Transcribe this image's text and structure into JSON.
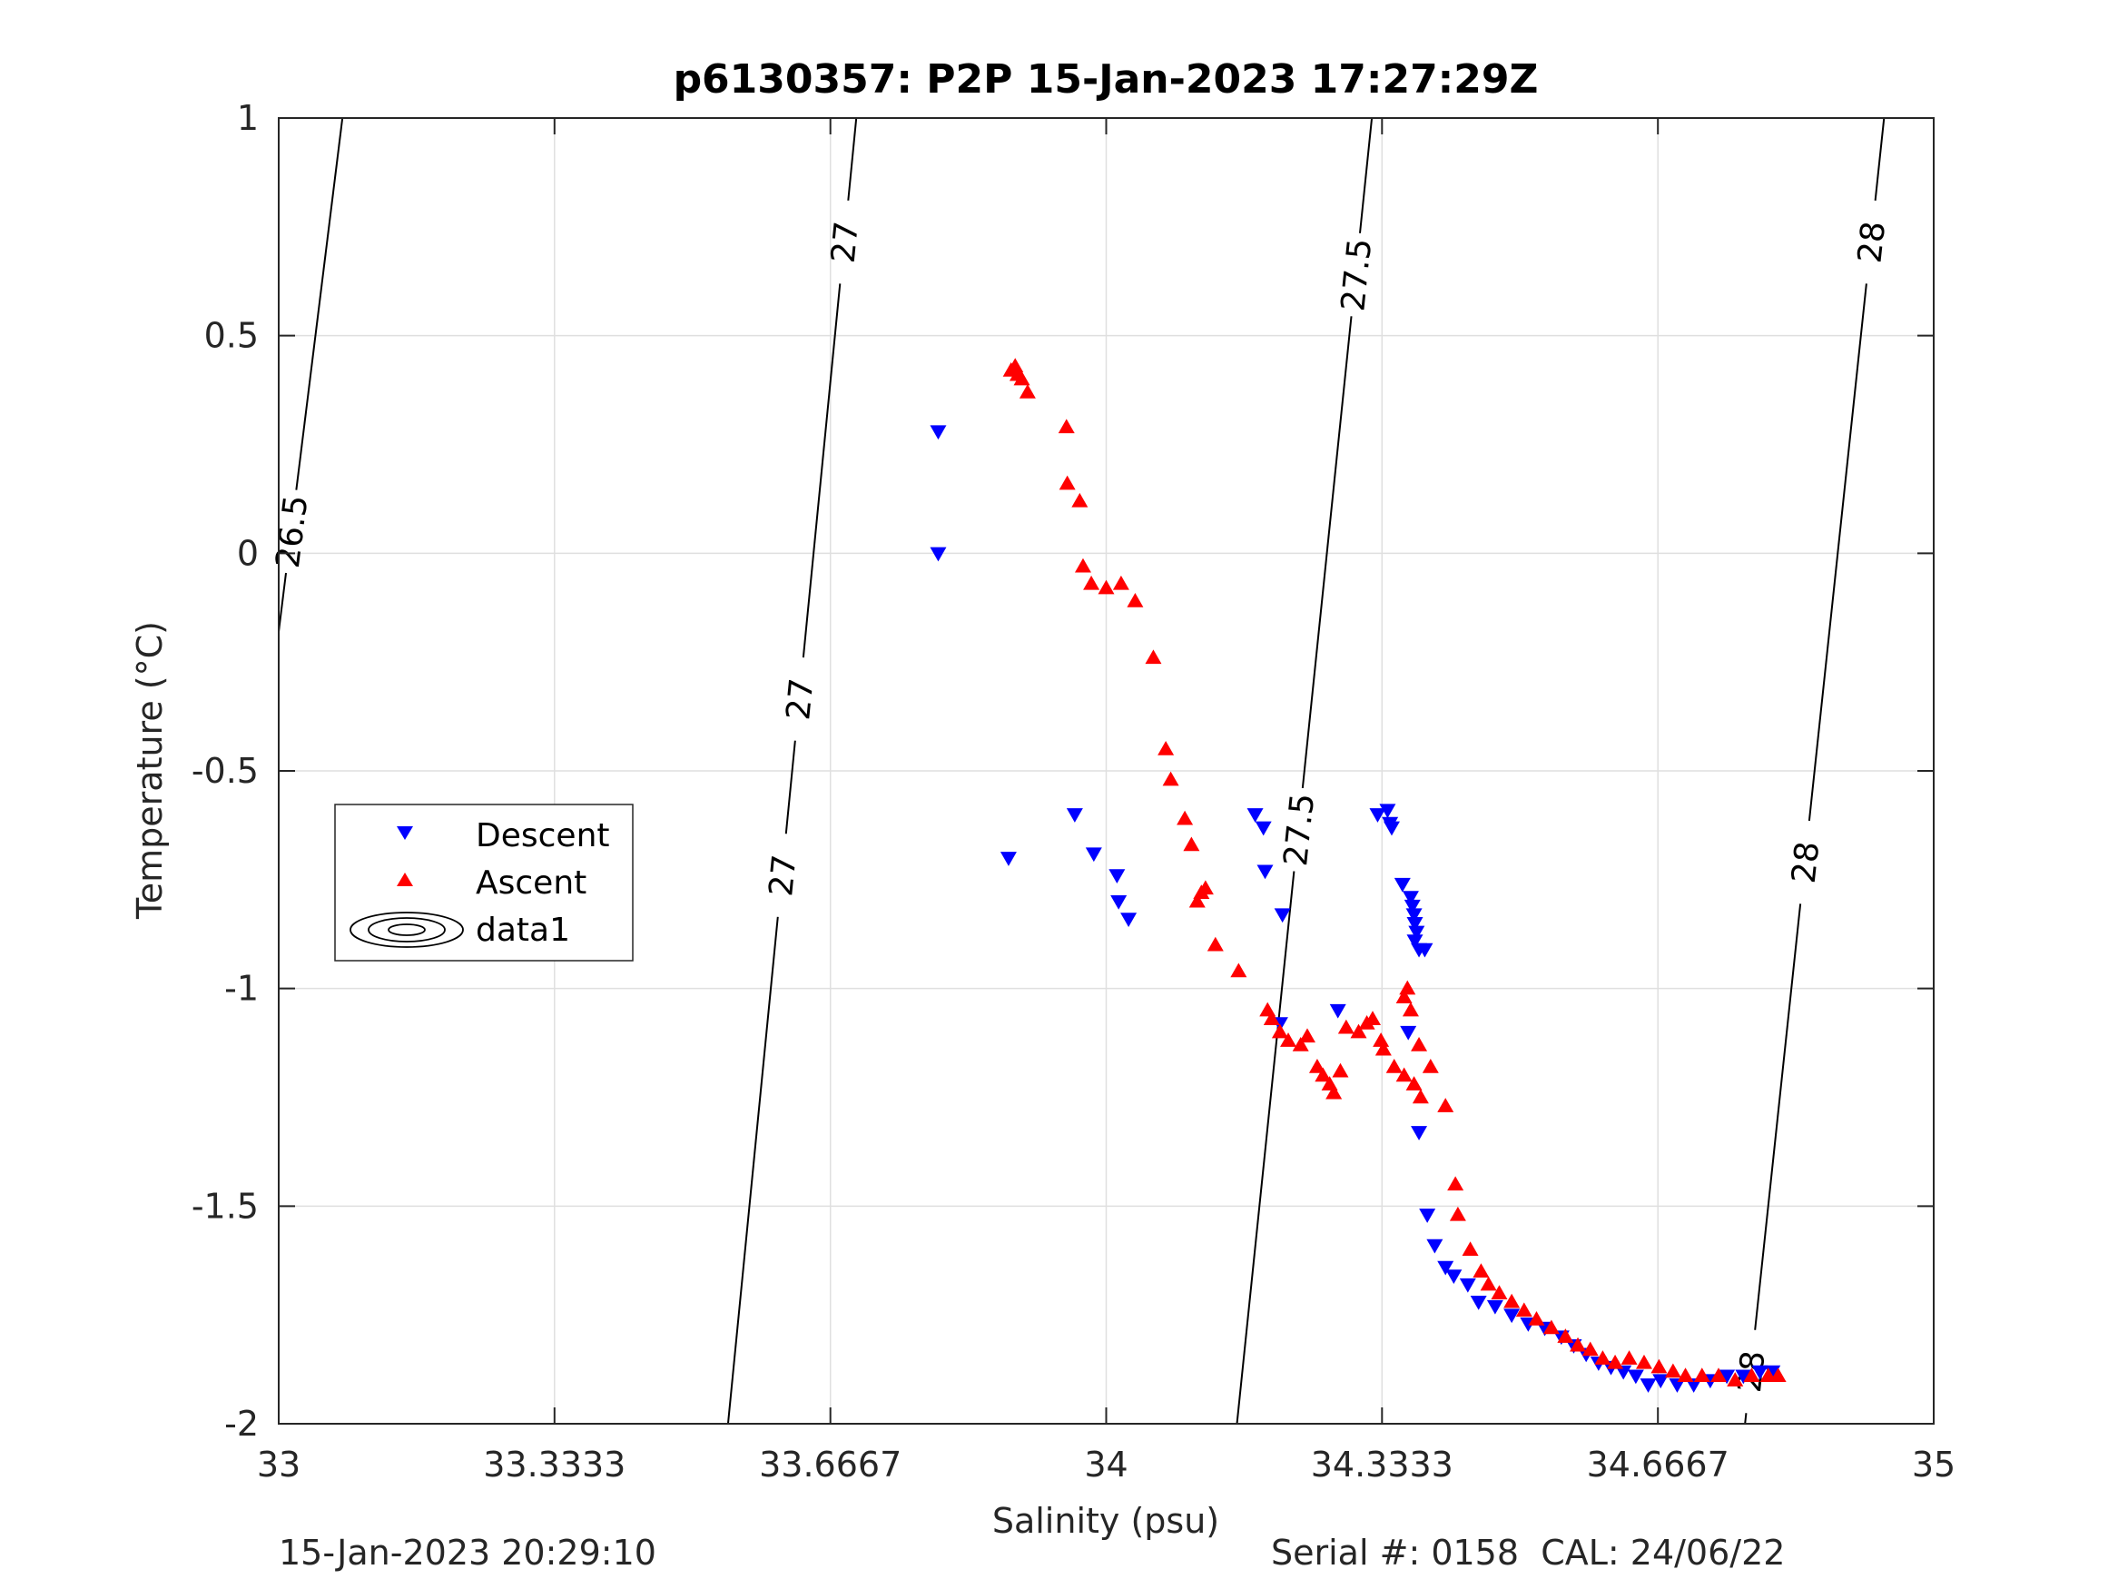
{
  "chart_data": {
    "type": "scatter",
    "title": "p6130357: P2P 15-Jan-2023 17:27:29Z",
    "xlabel": "Salinity (psu)",
    "ylabel": "Temperature (°C)",
    "xlim": [
      33,
      35
    ],
    "ylim": [
      -2,
      1
    ],
    "x_ticks": [
      33,
      33.3333,
      33.6667,
      34,
      34.3333,
      34.6667,
      35
    ],
    "x_tick_labels": [
      "33",
      "33.3333",
      "33.6667",
      "34",
      "34.3333",
      "34.6667",
      "35"
    ],
    "y_ticks": [
      1,
      0.5,
      0,
      -0.5,
      -1,
      -1.5,
      -2
    ],
    "y_tick_labels": [
      "1",
      "0.5",
      "0",
      "-0.5",
      "-1",
      "-1.5",
      "-2"
    ],
    "grid": true,
    "legend_position": "center-left",
    "legend": [
      "Descent",
      "Ascent",
      "data1"
    ],
    "contour_labels": [
      "26.5",
      "27",
      "27",
      "27",
      "27.5",
      "27.5",
      "28",
      "28",
      "28"
    ],
    "contours": [
      {
        "level": 26.5,
        "points": [
          [
            33.0,
            -0.18
          ],
          [
            33.077,
            1.0
          ]
        ]
      },
      {
        "level": 27,
        "points": [
          [
            33.543,
            -2.0
          ],
          [
            33.698,
            1.0
          ]
        ]
      },
      {
        "level": 27.5,
        "points": [
          [
            34.158,
            -2.0
          ],
          [
            34.321,
            1.0
          ]
        ]
      },
      {
        "level": 28,
        "points": [
          [
            34.772,
            -2.0
          ],
          [
            34.94,
            1.0
          ]
        ]
      }
    ],
    "series": [
      {
        "name": "Descent",
        "color": "#0000ff",
        "marker": "triangle-down",
        "points": [
          [
            33.797,
            0.28
          ],
          [
            33.797,
            0.0
          ],
          [
            33.882,
            -0.7
          ],
          [
            33.962,
            -0.6
          ],
          [
            33.985,
            -0.69
          ],
          [
            34.013,
            -0.74
          ],
          [
            34.015,
            -0.8
          ],
          [
            34.027,
            -0.84
          ],
          [
            34.18,
            -0.6
          ],
          [
            34.19,
            -0.63
          ],
          [
            34.192,
            -0.73
          ],
          [
            34.213,
            -0.83
          ],
          [
            34.21,
            -1.08
          ],
          [
            34.28,
            -1.05
          ],
          [
            34.328,
            -0.6
          ],
          [
            34.34,
            -0.59
          ],
          [
            34.343,
            -0.62
          ],
          [
            34.345,
            -0.63
          ],
          [
            34.358,
            -0.76
          ],
          [
            34.368,
            -0.79
          ],
          [
            34.37,
            -0.81
          ],
          [
            34.372,
            -0.83
          ],
          [
            34.373,
            -0.85
          ],
          [
            34.375,
            -0.87
          ],
          [
            34.373,
            -0.89
          ],
          [
            34.378,
            -0.91
          ],
          [
            34.385,
            -0.91
          ],
          [
            34.365,
            -1.1
          ],
          [
            34.378,
            -1.33
          ],
          [
            34.388,
            -1.52
          ],
          [
            34.397,
            -1.59
          ],
          [
            34.41,
            -1.64
          ],
          [
            34.42,
            -1.66
          ],
          [
            34.437,
            -1.68
          ],
          [
            34.45,
            -1.72
          ],
          [
            34.47,
            -1.73
          ],
          [
            34.49,
            -1.75
          ],
          [
            34.51,
            -1.77
          ],
          [
            34.53,
            -1.78
          ],
          [
            34.55,
            -1.8
          ],
          [
            34.565,
            -1.82
          ],
          [
            34.58,
            -1.84
          ],
          [
            34.595,
            -1.86
          ],
          [
            34.61,
            -1.87
          ],
          [
            34.625,
            -1.88
          ],
          [
            34.64,
            -1.89
          ],
          [
            34.655,
            -1.91
          ],
          [
            34.67,
            -1.9
          ],
          [
            34.69,
            -1.91
          ],
          [
            34.71,
            -1.91
          ],
          [
            34.73,
            -1.9
          ],
          [
            34.75,
            -1.89
          ],
          [
            34.77,
            -1.89
          ],
          [
            34.79,
            -1.88
          ],
          [
            34.805,
            -1.88
          ]
        ]
      },
      {
        "name": "Ascent",
        "color": "#ff0000",
        "marker": "triangle-up",
        "points": [
          [
            33.885,
            0.42
          ],
          [
            33.89,
            0.43
          ],
          [
            33.893,
            0.41
          ],
          [
            33.898,
            0.4
          ],
          [
            33.905,
            0.37
          ],
          [
            33.952,
            0.29
          ],
          [
            33.953,
            0.16
          ],
          [
            33.968,
            0.12
          ],
          [
            33.972,
            -0.03
          ],
          [
            33.982,
            -0.07
          ],
          [
            34.0,
            -0.08
          ],
          [
            34.018,
            -0.07
          ],
          [
            34.035,
            -0.11
          ],
          [
            34.057,
            -0.24
          ],
          [
            34.072,
            -0.45
          ],
          [
            34.078,
            -0.52
          ],
          [
            34.095,
            -0.61
          ],
          [
            34.103,
            -0.67
          ],
          [
            34.11,
            -0.8
          ],
          [
            34.115,
            -0.78
          ],
          [
            34.12,
            -0.77
          ],
          [
            34.132,
            -0.9
          ],
          [
            34.16,
            -0.96
          ],
          [
            34.195,
            -1.05
          ],
          [
            34.2,
            -1.07
          ],
          [
            34.21,
            -1.1
          ],
          [
            34.22,
            -1.12
          ],
          [
            34.235,
            -1.13
          ],
          [
            34.243,
            -1.11
          ],
          [
            34.255,
            -1.18
          ],
          [
            34.262,
            -1.2
          ],
          [
            34.27,
            -1.22
          ],
          [
            34.275,
            -1.24
          ],
          [
            34.283,
            -1.19
          ],
          [
            34.29,
            -1.09
          ],
          [
            34.305,
            -1.1
          ],
          [
            34.315,
            -1.08
          ],
          [
            34.322,
            -1.07
          ],
          [
            34.332,
            -1.12
          ],
          [
            34.335,
            -1.14
          ],
          [
            34.348,
            -1.18
          ],
          [
            34.36,
            -1.2
          ],
          [
            34.372,
            -1.22
          ],
          [
            34.38,
            -1.25
          ],
          [
            34.36,
            -1.02
          ],
          [
            34.364,
            -1.0
          ],
          [
            34.368,
            -1.05
          ],
          [
            34.378,
            -1.13
          ],
          [
            34.392,
            -1.18
          ],
          [
            34.41,
            -1.27
          ],
          [
            34.422,
            -1.45
          ],
          [
            34.425,
            -1.52
          ],
          [
            34.44,
            -1.6
          ],
          [
            34.453,
            -1.65
          ],
          [
            34.462,
            -1.68
          ],
          [
            34.475,
            -1.7
          ],
          [
            34.49,
            -1.72
          ],
          [
            34.505,
            -1.74
          ],
          [
            34.52,
            -1.76
          ],
          [
            34.538,
            -1.78
          ],
          [
            34.555,
            -1.8
          ],
          [
            34.57,
            -1.82
          ],
          [
            34.585,
            -1.83
          ],
          [
            34.6,
            -1.85
          ],
          [
            34.615,
            -1.86
          ],
          [
            34.632,
            -1.85
          ],
          [
            34.65,
            -1.86
          ],
          [
            34.668,
            -1.87
          ],
          [
            34.685,
            -1.88
          ],
          [
            34.7,
            -1.89
          ],
          [
            34.72,
            -1.89
          ],
          [
            34.74,
            -1.89
          ],
          [
            34.76,
            -1.9
          ],
          [
            34.78,
            -1.89
          ],
          [
            34.8,
            -1.89
          ],
          [
            34.812,
            -1.89
          ]
        ]
      }
    ]
  },
  "footer": {
    "timestamp": "15-Jan-2023 20:29:10",
    "serial": "Serial #: 0158  CAL: 24/06/22"
  },
  "colors": {
    "descent": "#0000ff",
    "ascent": "#ff0000",
    "axis": "#262626",
    "grid": "#dfdfdf",
    "contour": "#000000"
  }
}
